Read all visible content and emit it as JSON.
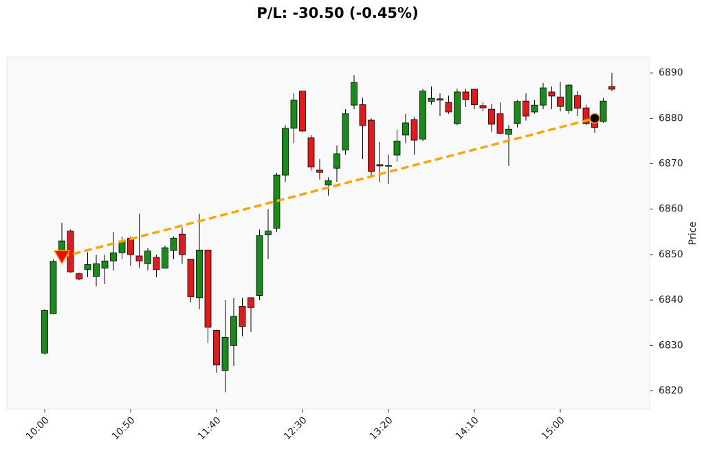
{
  "chart_data": {
    "type": "candlestick",
    "title": "P/L: -30.50 (-0.45%)",
    "y_label": "Price",
    "categories": [
      "10:00",
      null,
      null,
      null,
      null,
      null,
      null,
      null,
      null,
      null,
      "10:50",
      null,
      null,
      null,
      null,
      null,
      null,
      null,
      null,
      null,
      "11:40",
      null,
      null,
      null,
      null,
      null,
      null,
      null,
      null,
      null,
      "12:30",
      null,
      null,
      null,
      null,
      null,
      null,
      null,
      null,
      null,
      "13:20",
      null,
      null,
      null,
      null,
      null,
      null,
      null,
      null,
      null,
      "14:10",
      null,
      null,
      null,
      null,
      null,
      null,
      null,
      null,
      null,
      "15:00",
      null,
      null,
      null,
      null,
      null,
      null
    ],
    "open": [
      6828.3,
      6837,
      6849.5,
      6855.2,
      6845.8,
      6846.7,
      6845.2,
      6847,
      6848.6,
      6850.4,
      6853.6,
      6849.7,
      6848,
      6849.4,
      6847,
      6850.9,
      6854.5,
      6849,
      6840.5,
      6851,
      6833.3,
      6824.5,
      6830,
      6838.6,
      6840.5,
      6841,
      6854.4,
      6855.8,
      6867.5,
      6877.8,
      6886,
      6875.7,
      6868.6,
      6865.3,
      6869,
      6873,
      6882.9,
      6883,
      6879.6,
      6869.8,
      6869.5,
      6871.9,
      6876.3,
      6879.7,
      6875.4,
      6883.7,
      6884.3,
      6883.5,
      6878.8,
      6885.8,
      6886.4,
      6882.8,
      6882,
      6881,
      6876.5,
      6878.8,
      6883.8,
      6881.4,
      6882.9,
      6885.8,
      6884.7,
      6881.7,
      6885,
      6882.3,
      6879.6,
      6879.3,
      6887
    ],
    "high": [
      6838,
      6849,
      6857,
      6855.5,
      6846,
      6850.5,
      6850,
      6850,
      6855,
      6854,
      6854,
      6859,
      6851.5,
      6850,
      6852,
      6854,
      6856,
      6849,
      6859,
      6851,
      6833.5,
      6840,
      6840.5,
      6840.5,
      6840.5,
      6855.5,
      6860,
      6868,
      6878.5,
      6885.5,
      6886,
      6876.3,
      6871,
      6867,
      6874,
      6882,
      6889.5,
      6884.5,
      6880,
      6874.8,
      6872,
      6877.5,
      6881,
      6880.3,
      6886.5,
      6887,
      6885.5,
      6885,
      6886.5,
      6886.5,
      6886.5,
      6883.5,
      6883.2,
      6883.5,
      6878.5,
      6884,
      6885.5,
      6884,
      6887.8,
      6887,
      6888,
      6887.5,
      6886,
      6883,
      6880.5,
      6884.5,
      6890
    ],
    "low": [
      6828,
      6837,
      6848,
      6846,
      6844.4,
      6845,
      6843,
      6843.5,
      6846.5,
      6849,
      6847.5,
      6847,
      6846.5,
      6845,
      6847,
      6849,
      6848,
      6839.5,
      6838,
      6830.5,
      6824,
      6819.7,
      6825.5,
      6832,
      6833,
      6840,
      6849,
      6855,
      6866,
      6874.5,
      6877,
      6868.5,
      6866.5,
      6863,
      6866,
      6872,
      6882,
      6871,
      6867.3,
      6866,
      6865.5,
      6870.5,
      6874.5,
      6872,
      6875,
      6883,
      6880.5,
      6881,
      6878.5,
      6882.5,
      6882,
      6881.5,
      6877,
      6876.5,
      6869.5,
      6878,
      6879.5,
      6881,
      6882,
      6882,
      6881.5,
      6881,
      6880.5,
      6878.5,
      6876.8,
      6879,
      6886
    ],
    "close": [
      6837.7,
      6848.5,
      6853,
      6846.2,
      6844.6,
      6847.8,
      6848,
      6848.6,
      6850.4,
      6853,
      6850,
      6848.6,
      6850.8,
      6846.7,
      6851.5,
      6853.6,
      6850,
      6840.7,
      6851,
      6834,
      6825.7,
      6831.8,
      6836.4,
      6834.2,
      6838.3,
      6854.2,
      6855.2,
      6867.5,
      6877.8,
      6884,
      6877.2,
      6869.3,
      6868.1,
      6866.3,
      6872.2,
      6881,
      6887.9,
      6878.4,
      6868.3,
      6869.5,
      6869.6,
      6875,
      6879,
      6875.2,
      6886,
      6884.4,
      6884,
      6881.4,
      6885.8,
      6884.1,
      6883,
      6882.3,
      6878.7,
      6876.7,
      6877.6,
      6883.7,
      6880.5,
      6882.9,
      6886.7,
      6884.9,
      6882.6,
      6887.3,
      6882.2,
      6878.8,
      6878,
      6883.8,
      6886.4
    ],
    "up_color": "#1a8a1a",
    "down_color": "#e31a1c",
    "edge_color": "#000000",
    "entry": {
      "x": 2,
      "y": 6849.5,
      "color": "#ff0000"
    },
    "exit": {
      "x": 64,
      "y": 6880,
      "color": "#000000"
    },
    "trade_line_color": "#ffa500",
    "xlim": [
      -4.4,
      70.4
    ],
    "xticks": [
      0,
      10,
      20,
      30,
      40,
      50,
      60
    ],
    "ylim": [
      6816,
      6893.5
    ],
    "yticks": [
      6820,
      6830,
      6840,
      6850,
      6860,
      6870,
      6880,
      6890
    ]
  }
}
